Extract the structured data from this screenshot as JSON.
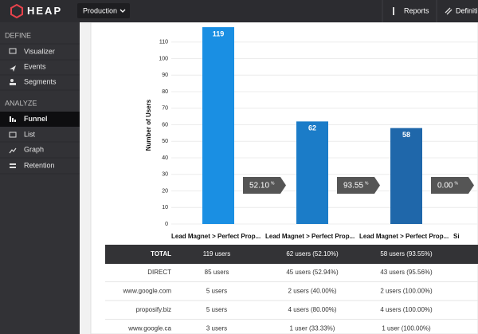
{
  "header": {
    "logo": "HEAP",
    "project": "Production",
    "links": [
      "Reports",
      "Definiti"
    ]
  },
  "sidebar": {
    "sections": [
      {
        "title": "DEFINE",
        "items": [
          "Visualizer",
          "Events",
          "Segments"
        ]
      },
      {
        "title": "ANALYZE",
        "items": [
          "Funnel",
          "List",
          "Graph",
          "Retention"
        ]
      }
    ]
  },
  "chart_data": {
    "type": "bar",
    "y_label": "Number of Users",
    "categories": [
      "Lead Magnet > Perfect Prop...",
      "Lead Magnet > Perfect Prop...",
      "Lead Magnet > Perfect Prop...",
      "Si"
    ],
    "values": [
      119,
      62,
      58,
      null
    ],
    "colors": [
      "#1a8fe3",
      "#1b7cc8",
      "#1f67aa",
      "#1f67aa"
    ],
    "conversion_labels": [
      "52.10",
      "93.55",
      "0.00"
    ],
    "conversion_unit": "%",
    "ylim": [
      0,
      120
    ],
    "yticks": [
      0,
      10,
      20,
      30,
      40,
      50,
      60,
      70,
      80,
      90,
      100,
      110
    ],
    "grid": true
  },
  "table": {
    "header": [
      "TOTAL",
      "119 users",
      "62 users (52.10%)",
      "58 users (93.55%)"
    ],
    "rows": [
      [
        "DIRECT",
        "85 users",
        "45 users (52.94%)",
        "43 users (95.56%)"
      ],
      [
        "www.google.com",
        "5 users",
        "2 users (40.00%)",
        "2 users (100.00%)"
      ],
      [
        "proposify.biz",
        "5 users",
        "4 users (80.00%)",
        "4 users (100.00%)"
      ],
      [
        "www.google.ca",
        "3 users",
        "1 user (33.33%)",
        "1 user (100.00%)"
      ]
    ]
  }
}
